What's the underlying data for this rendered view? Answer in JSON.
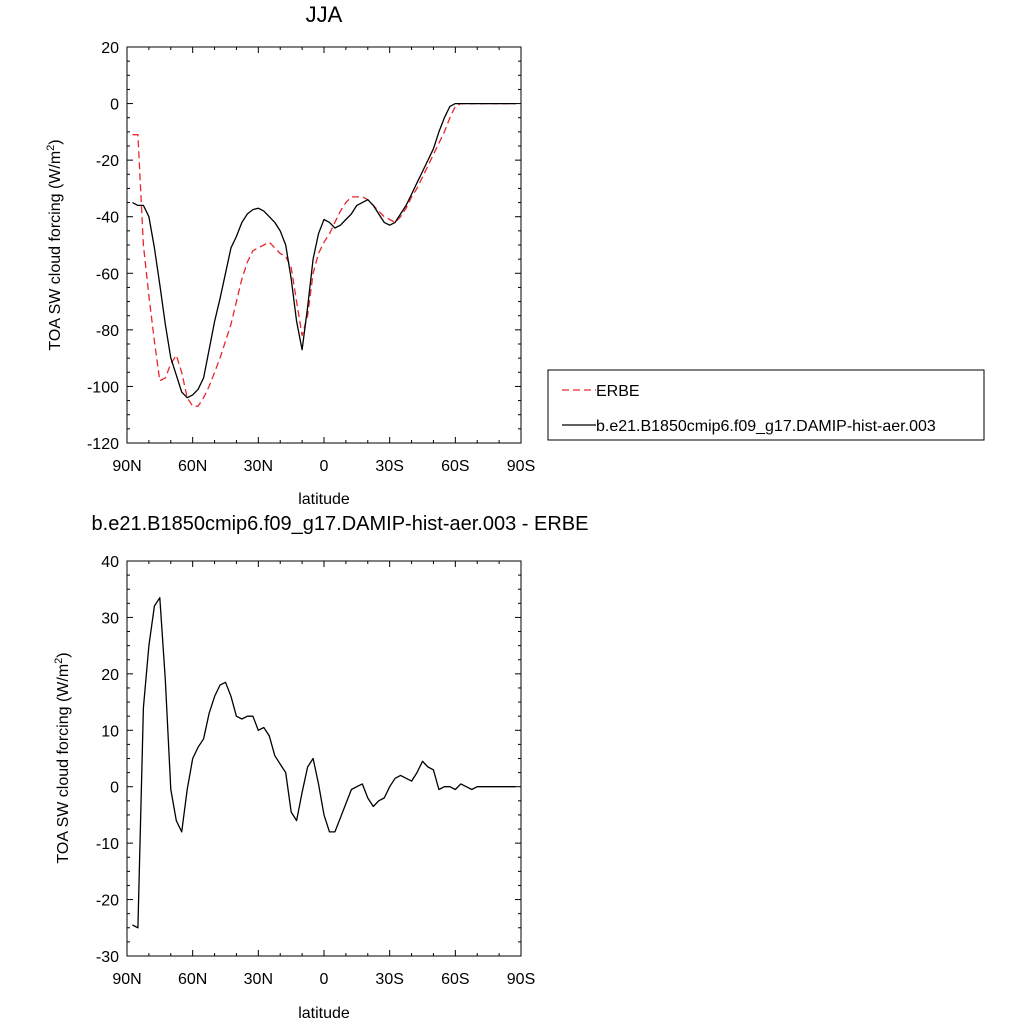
{
  "chart_data": [
    {
      "type": "line",
      "title": "JJA",
      "xlabel": "latitude",
      "ylabel_main": "TOA SW cloud forcing (W/m",
      "ylabel_sup": "2",
      "ylabel_end": ")",
      "xlim": [
        90,
        -90
      ],
      "ylim": [
        -120,
        20
      ],
      "xticks": [
        90,
        60,
        30,
        0,
        -30,
        -60,
        -90
      ],
      "xtick_labels": [
        "90N",
        "60N",
        "30N",
        "0",
        "30S",
        "60S",
        "90S"
      ],
      "yticks": [
        -120,
        -100,
        -80,
        -60,
        -40,
        -20,
        0,
        20
      ],
      "ytick_labels": [
        "-120",
        "-100",
        "-80",
        "-60",
        "-40",
        "-20",
        "0",
        "20"
      ],
      "legend_position": "right",
      "series": [
        {
          "name": "ERBE",
          "color": "#e8262d",
          "dash": "dashed",
          "x": [
            87.5,
            85,
            82.5,
            80,
            77.5,
            75,
            72.5,
            70,
            67.5,
            65,
            62.5,
            60,
            57.5,
            55,
            52.5,
            50,
            47.5,
            45,
            42.5,
            40,
            37.5,
            35,
            32.5,
            30,
            27.5,
            25,
            22.5,
            20,
            17.5,
            15,
            12.5,
            10,
            7.5,
            5,
            2.5,
            0,
            -2.5,
            -5,
            -7.5,
            -10,
            -12.5,
            -15,
            -17.5,
            -20,
            -22.5,
            -25,
            -27.5,
            -30,
            -32.5,
            -35,
            -37.5,
            -40,
            -42.5,
            -45,
            -47.5,
            -50,
            -52.5,
            -55,
            -57.5,
            -60,
            -62.5,
            -65,
            -67.5,
            -70,
            -72.5,
            -75,
            -77.5,
            -80,
            -82.5,
            -85,
            -87.5
          ],
          "values": [
            -11,
            -11,
            -50,
            -68,
            -84,
            -98,
            -97,
            -92,
            -89,
            -95,
            -104,
            -107,
            -107,
            -104,
            -100,
            -95,
            -90,
            -84,
            -78,
            -70,
            -62,
            -56,
            -52,
            -51,
            -50,
            -49,
            -51,
            -53,
            -54,
            -58,
            -70,
            -82,
            -75,
            -60,
            -53,
            -49,
            -46,
            -42,
            -38,
            -35,
            -33,
            -33,
            -33,
            -34,
            -36,
            -38,
            -40,
            -41,
            -42,
            -40,
            -37,
            -33,
            -30,
            -26,
            -22,
            -18,
            -14,
            -10,
            -5,
            -1,
            0,
            0,
            0,
            0,
            0,
            0,
            0,
            0,
            0,
            0,
            0
          ]
        },
        {
          "name": "b.e21.B1850cmip6.f09_g17.DAMIP-hist-aer.003",
          "color": "#000000",
          "dash": "solid",
          "x": [
            87.5,
            85,
            82.5,
            80,
            77.5,
            75,
            72.5,
            70,
            67.5,
            65,
            62.5,
            60,
            57.5,
            55,
            52.5,
            50,
            47.5,
            45,
            42.5,
            40,
            37.5,
            35,
            32.5,
            30,
            27.5,
            25,
            22.5,
            20,
            17.5,
            15,
            12.5,
            10,
            7.5,
            5,
            2.5,
            0,
            -2.5,
            -5,
            -7.5,
            -10,
            -12.5,
            -15,
            -17.5,
            -20,
            -22.5,
            -25,
            -27.5,
            -30,
            -32.5,
            -35,
            -37.5,
            -40,
            -42.5,
            -45,
            -47.5,
            -50,
            -52.5,
            -55,
            -57.5,
            -60,
            -62.5,
            -65,
            -67.5,
            -70,
            -72.5,
            -75,
            -77.5,
            -80,
            -82.5,
            -85,
            -87.5
          ],
          "values": [
            -35,
            -36,
            -36,
            -40,
            -51,
            -64,
            -78,
            -90,
            -96,
            -102,
            -104,
            -103,
            -101,
            -97,
            -87,
            -77,
            -69,
            -60,
            -51,
            -47,
            -42,
            -39,
            -37.5,
            -37,
            -38,
            -40,
            -42,
            -45,
            -50,
            -62,
            -77,
            -87,
            -72,
            -55,
            -46,
            -41,
            -42,
            -44,
            -43,
            -41,
            -39,
            -36,
            -35,
            -34,
            -36,
            -39,
            -42,
            -43,
            -42,
            -39,
            -36,
            -32,
            -28,
            -24,
            -20,
            -16,
            -10,
            -5,
            -1,
            0,
            0,
            0,
            0,
            0,
            0,
            0,
            0,
            0,
            0,
            0,
            0
          ]
        }
      ]
    },
    {
      "type": "line",
      "title": "b.e21.B1850cmip6.f09_g17.DAMIP-hist-aer.003 - ERBE",
      "xlabel": "latitude",
      "ylabel_main": "TOA SW cloud forcing (W/m",
      "ylabel_sup": "2",
      "ylabel_end": ")",
      "xlim": [
        90,
        -90
      ],
      "ylim": [
        -30,
        40
      ],
      "xticks": [
        90,
        60,
        30,
        0,
        -30,
        -60,
        -90
      ],
      "xtick_labels": [
        "90N",
        "60N",
        "30N",
        "0",
        "30S",
        "60S",
        "90S"
      ],
      "yticks": [
        -30,
        -20,
        -10,
        0,
        10,
        20,
        30,
        40
      ],
      "ytick_labels": [
        "-30",
        "-20",
        "-10",
        "0",
        "10",
        "20",
        "30",
        "40"
      ],
      "series": [
        {
          "color": "#000000",
          "dash": "solid",
          "x": [
            87.5,
            85,
            82.5,
            80,
            77.5,
            75,
            72.5,
            70,
            67.5,
            65,
            62.5,
            60,
            57.5,
            55,
            52.5,
            50,
            47.5,
            45,
            42.5,
            40,
            37.5,
            35,
            32.5,
            30,
            27.5,
            25,
            22.5,
            20,
            17.5,
            15,
            12.5,
            10,
            7.5,
            5,
            2.5,
            0,
            -2.5,
            -5,
            -7.5,
            -10,
            -12.5,
            -15,
            -17.5,
            -20,
            -22.5,
            -25,
            -27.5,
            -30,
            -32.5,
            -35,
            -37.5,
            -40,
            -42.5,
            -45,
            -47.5,
            -50,
            -52.5,
            -55,
            -57.5,
            -60,
            -62.5,
            -65,
            -67.5,
            -70,
            -72.5,
            -75,
            -77.5,
            -80,
            -82.5,
            -85,
            -87.5
          ],
          "values": [
            -24.5,
            -25,
            14,
            25,
            32,
            33.5,
            19,
            -0.5,
            -6,
            -8,
            -0.5,
            5,
            7,
            8.5,
            13,
            16,
            18,
            18.5,
            16,
            12.5,
            12,
            12.5,
            12.5,
            10,
            10.5,
            9,
            5.5,
            4,
            2.5,
            -4.5,
            -6,
            -1,
            3.5,
            5,
            0.5,
            -5,
            -8,
            -8,
            -5.5,
            -3,
            -0.5,
            0,
            0.5,
            -2,
            -3.5,
            -2.5,
            -2,
            0,
            1.5,
            2,
            1.5,
            1,
            2.5,
            4.5,
            3.5,
            3,
            -0.5,
            0,
            0,
            -0.5,
            0.5,
            0,
            -0.5,
            0,
            0,
            0,
            0,
            0,
            0,
            0,
            0
          ]
        }
      ]
    }
  ]
}
